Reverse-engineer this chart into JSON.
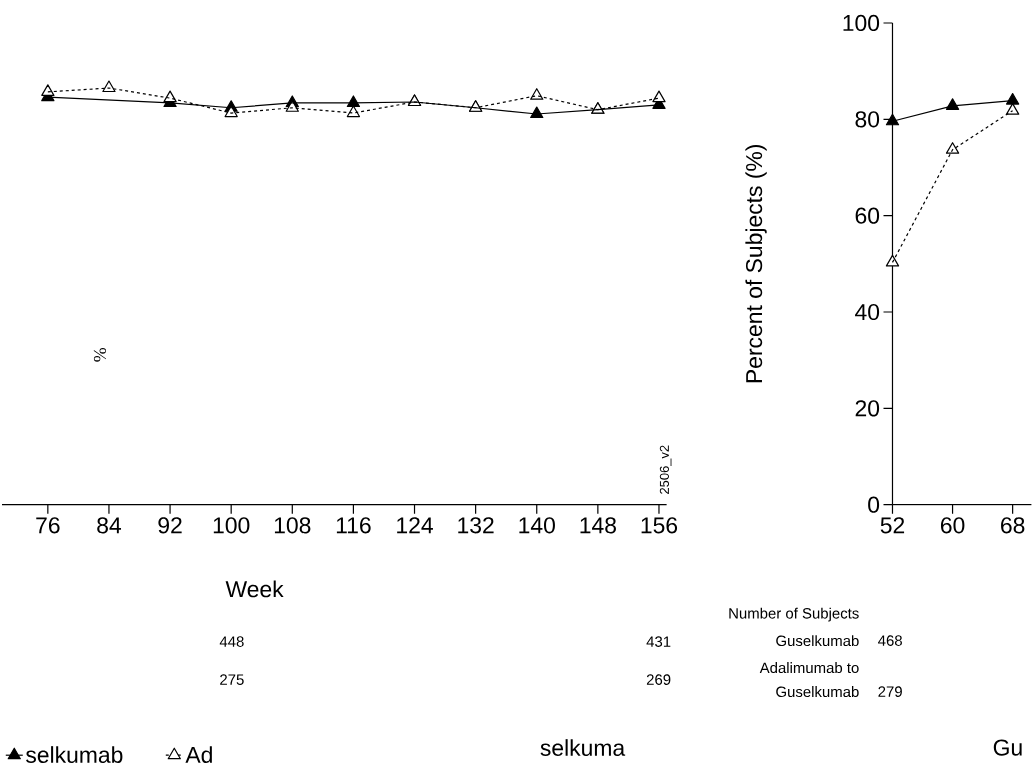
{
  "chart_data": [
    {
      "type": "line",
      "xlabel": "Week",
      "ylabel": "%",
      "xlim": [
        70,
        157
      ],
      "xticks": [
        76,
        84,
        92,
        100,
        108,
        116,
        124,
        132,
        140,
        148,
        156
      ],
      "ylim": [
        0,
        100
      ],
      "tick_labels": "x",
      "legend": "bottom",
      "marker": "triangle",
      "series": [
        {
          "name": "selkumab",
          "color": "#000000",
          "line_style": "solid",
          "x": [
            76,
            92,
            100,
            108,
            116,
            124,
            132,
            140,
            148,
            156
          ],
          "values": [
            84.6,
            83.4,
            82.4,
            83.4,
            83.4,
            83.6,
            82.4,
            81.1,
            82.0,
            83.0
          ]
        },
        {
          "name": "Ad",
          "color": "#000000",
          "line_style": "dashed",
          "x": [
            76,
            84,
            92,
            100,
            108,
            116,
            124,
            132,
            140,
            148,
            156
          ],
          "values": [
            85.7,
            86.5,
            84.4,
            81.3,
            82.4,
            81.3,
            83.6,
            82.4,
            84.9,
            82.0,
            84.4
          ]
        }
      ],
      "annotations": [
        "2506_v2",
        "448",
        "275",
        "431",
        "269",
        "selkuma"
      ]
    },
    {
      "type": "line",
      "ylabel": "Percent of Subjects (%)",
      "xlim": [
        52,
        70.5
      ],
      "xticks": [
        52,
        60,
        68
      ],
      "ylim": [
        0,
        100
      ],
      "yticks": [
        0,
        20,
        40,
        60,
        80,
        100
      ],
      "marker": "triangle",
      "series": [
        {
          "color": "#000000",
          "line_style": "solid",
          "x": [
            52,
            60,
            68
          ],
          "values": [
            79.6,
            82.8,
            83.9
          ]
        },
        {
          "color": "#000000",
          "line_style": "dashed",
          "x": [
            52,
            60,
            68
          ],
          "values": [
            50.3,
            73.7,
            81.8
          ]
        }
      ],
      "annotations": [
        "Number of Subjects",
        "Guselkumab",
        "468",
        "Adalimumab to",
        "Guselkumab",
        "279",
        "Gu"
      ]
    }
  ]
}
